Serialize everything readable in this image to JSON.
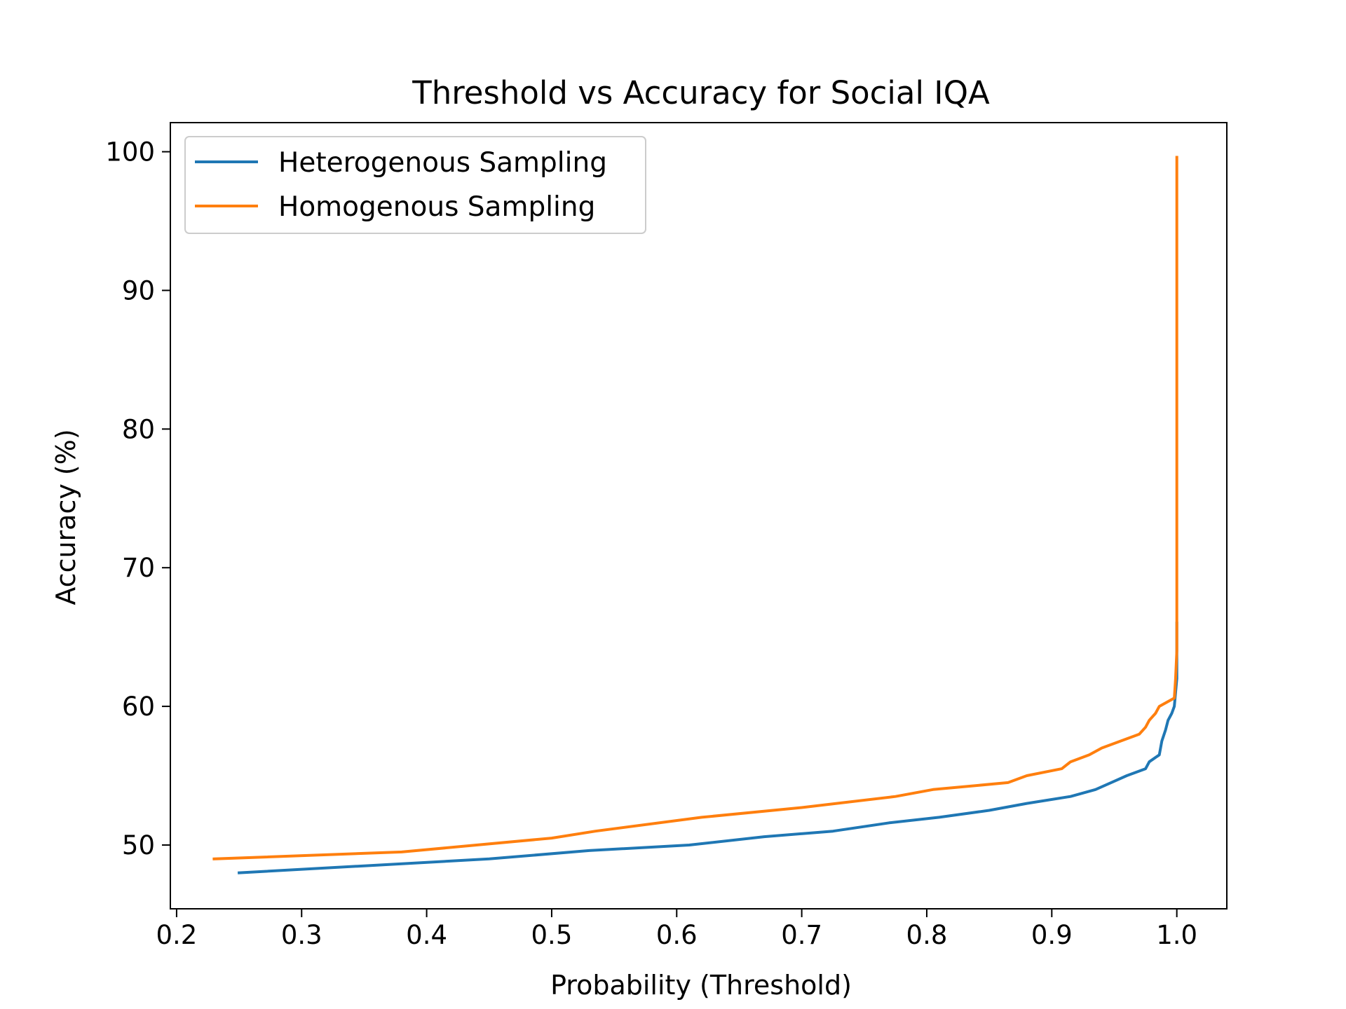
{
  "chart_data": {
    "type": "line",
    "title": "Threshold vs Accuracy for Social IQA",
    "xlabel": "Probability (Threshold)",
    "ylabel": "Accuracy (%)",
    "xlim": [
      0.195,
      1.04
    ],
    "ylim": [
      45.4,
      102.1
    ],
    "xticks": [
      {
        "value": 0.2,
        "label": "0.2"
      },
      {
        "value": 0.3,
        "label": "0.3"
      },
      {
        "value": 0.4,
        "label": "0.4"
      },
      {
        "value": 0.5,
        "label": "0.5"
      },
      {
        "value": 0.6,
        "label": "0.6"
      },
      {
        "value": 0.7,
        "label": "0.7"
      },
      {
        "value": 0.8,
        "label": "0.8"
      },
      {
        "value": 0.9,
        "label": "0.9"
      },
      {
        "value": 1.0,
        "label": "1.0"
      }
    ],
    "yticks": [
      {
        "value": 50,
        "label": "50"
      },
      {
        "value": 60,
        "label": "60"
      },
      {
        "value": 70,
        "label": "70"
      },
      {
        "value": 80,
        "label": "80"
      },
      {
        "value": 90,
        "label": "90"
      },
      {
        "value": 100,
        "label": "100"
      }
    ],
    "grid": false,
    "legend_position": "top-left",
    "series": [
      {
        "name": "Heterogenous Sampling",
        "color": "#1f77b4",
        "points": [
          [
            0.25,
            48.0
          ],
          [
            0.35,
            48.5
          ],
          [
            0.45,
            49.0
          ],
          [
            0.53,
            49.6
          ],
          [
            0.61,
            50.0
          ],
          [
            0.67,
            50.6
          ],
          [
            0.725,
            51.0
          ],
          [
            0.77,
            51.6
          ],
          [
            0.81,
            52.0
          ],
          [
            0.85,
            52.5
          ],
          [
            0.88,
            53.0
          ],
          [
            0.915,
            53.5
          ],
          [
            0.935,
            54.0
          ],
          [
            0.95,
            54.6
          ],
          [
            0.96,
            55.0
          ],
          [
            0.975,
            55.5
          ],
          [
            0.978,
            56.0
          ],
          [
            0.986,
            56.5
          ],
          [
            0.988,
            57.5
          ],
          [
            0.991,
            58.3
          ],
          [
            0.993,
            59.0
          ],
          [
            0.996,
            59.5
          ],
          [
            0.998,
            60.0
          ],
          [
            0.999,
            61.0
          ],
          [
            1.0,
            62.0
          ],
          [
            1.0,
            66.0
          ]
        ]
      },
      {
        "name": "Homogenous Sampling",
        "color": "#ff7f0e",
        "points": [
          [
            0.23,
            49.0
          ],
          [
            0.38,
            49.5
          ],
          [
            0.5,
            50.5
          ],
          [
            0.535,
            51.0
          ],
          [
            0.62,
            52.0
          ],
          [
            0.7,
            52.7
          ],
          [
            0.775,
            53.5
          ],
          [
            0.805,
            54.0
          ],
          [
            0.865,
            54.5
          ],
          [
            0.88,
            55.0
          ],
          [
            0.908,
            55.5
          ],
          [
            0.915,
            56.0
          ],
          [
            0.93,
            56.5
          ],
          [
            0.94,
            57.0
          ],
          [
            0.97,
            58.0
          ],
          [
            0.975,
            58.5
          ],
          [
            0.978,
            59.0
          ],
          [
            0.983,
            59.5
          ],
          [
            0.986,
            60.0
          ],
          [
            0.998,
            60.6
          ],
          [
            0.999,
            62.0
          ],
          [
            1.0,
            64.0
          ],
          [
            1.0,
            70.0
          ],
          [
            1.0,
            80.0
          ],
          [
            1.0,
            90.0
          ],
          [
            1.0,
            99.6
          ]
        ]
      }
    ]
  }
}
